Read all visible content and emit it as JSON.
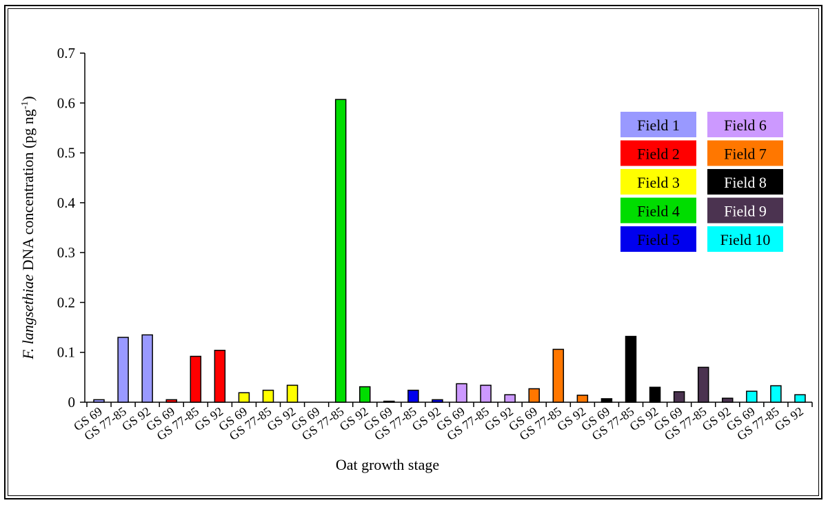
{
  "chart_data": {
    "type": "bar",
    "title": "",
    "xlabel": "Oat growth stage",
    "ylabel_italic": "F. langsethiae",
    "ylabel_rest": " DNA concentration (pg ng",
    "ylabel_sup": "-1",
    "ylabel_close": ")",
    "ylim": [
      0,
      0.7
    ],
    "yticks": [
      "0",
      "0.1",
      "0.2",
      "0.3",
      "0.4",
      "0.5",
      "0.6",
      "0.7"
    ],
    "categories": [
      "GS 69",
      "GS 77-85",
      "GS 92",
      "GS 69",
      "GS 77-85",
      "GS 92",
      "GS 69",
      "GS 77-85",
      "GS 92",
      "GS 69",
      "GS 77-85",
      "GS 92",
      "GS 69",
      "GS 77-85",
      "GS 92",
      "GS 69",
      "GS 77-85",
      "GS 92",
      "GS 69",
      "GS 77-85",
      "GS 92",
      "GS 69",
      "GS 77-85",
      "GS 92",
      "GS 69",
      "GS 77-85",
      "GS 92",
      "GS 69",
      "GS 77-85",
      "GS 92"
    ],
    "values": [
      0.005,
      0.13,
      0.135,
      0.005,
      0.092,
      0.104,
      0.019,
      0.024,
      0.034,
      0.0,
      0.607,
      0.031,
      0.002,
      0.024,
      0.005,
      0.037,
      0.034,
      0.015,
      0.027,
      0.106,
      0.014,
      0.007,
      0.132,
      0.03,
      0.021,
      0.07,
      0.008,
      0.022,
      0.033,
      0.015
    ],
    "series": [
      {
        "name": "Field 1",
        "color": "#9999ff"
      },
      {
        "name": "Field 2",
        "color": "#ff0000"
      },
      {
        "name": "Field 3",
        "color": "#ffff00"
      },
      {
        "name": "Field 4",
        "color": "#00dd00"
      },
      {
        "name": "Field 5",
        "color": "#0000ee"
      },
      {
        "name": "Field 6",
        "color": "#cc99ff"
      },
      {
        "name": "Field 7",
        "color": "#ff7700"
      },
      {
        "name": "Field 8",
        "color": "#000000"
      },
      {
        "name": "Field 9",
        "color": "#4b3350"
      },
      {
        "name": "Field 10",
        "color": "#00ffff"
      }
    ],
    "legend": {
      "placement": "right",
      "text_colors": [
        "#000000",
        "#000000",
        "#000000",
        "#000000",
        "#000000",
        "#000000",
        "#000000",
        "#ffffff",
        "#ffffff",
        "#000000"
      ]
    },
    "grid": false
  }
}
